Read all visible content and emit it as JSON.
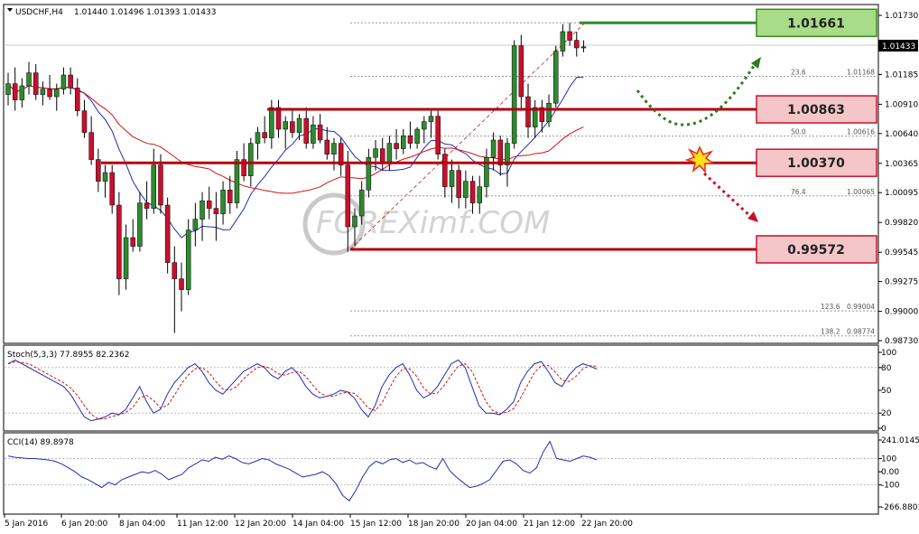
{
  "header": {
    "symbol": "USDCHF,H4",
    "ohlc": "1.01440 1.01496 1.01393 1.01433"
  },
  "watermark": "FOREXimf.COM",
  "colors": {
    "bull": "#2e8b2e",
    "bear": "#c8102e",
    "level_line": "#b50010",
    "target_line": "#2e8b2e",
    "ma_fast": "#1f2fb0",
    "ma_slow": "#d21414",
    "stoch_main": "#1f2fb0",
    "stoch_signal": "#d21414",
    "cci": "#1f2fb0",
    "level_box_fill": "#f4c6c8",
    "target_box_fill": "#a9dc88",
    "arrow_up": "#2e7a1e",
    "arrow_down": "#c8102e"
  },
  "level_boxes": [
    {
      "label": "1.01661",
      "price": 1.01661,
      "kind": "target"
    },
    {
      "label": "1.00863",
      "price": 1.00863,
      "kind": "level"
    },
    {
      "label": "1.00370",
      "price": 1.0037,
      "kind": "level"
    },
    {
      "label": "0.99572",
      "price": 0.99572,
      "kind": "level"
    }
  ],
  "fibonacci": [
    {
      "ratio": "23.6",
      "value": "1.01168",
      "price": 1.01168
    },
    {
      "ratio": "50.0",
      "value": "1.00616",
      "price": 1.00616
    },
    {
      "ratio": "76.4",
      "value": "1.00065",
      "price": 1.00065
    },
    {
      "ratio": "123.6",
      "value": "0.99004",
      "price": 0.99004
    },
    {
      "ratio": "138.2",
      "value": "0.98774",
      "price": 0.98774
    }
  ],
  "price_axis": {
    "ticks": [
      "1.01730",
      "1.01455",
      "1.01185",
      "1.00910",
      "1.00640",
      "1.00365",
      "1.00095",
      "0.99820",
      "0.99545",
      "0.99275",
      "0.99000",
      "0.98730"
    ],
    "current_price": "1.01433",
    "range": [
      0.9868,
      1.0183
    ]
  },
  "time_axis": {
    "labels": [
      "5 Jan 2016",
      "6 Jan 20:00",
      "8 Jan 04:00",
      "11 Jan 12:00",
      "12 Jan 20:00",
      "14 Jan 04:00",
      "15 Jan 12:00",
      "18 Jan 20:00",
      "20 Jan 04:00",
      "21 Jan 12:00",
      "22 Jan 20:00"
    ]
  },
  "stoch": {
    "title": "Stoch(5,3,3) 77.8955 82.2362",
    "ticks": [
      "100",
      "80",
      "50",
      "20",
      "0"
    ]
  },
  "cci": {
    "title": "CCI(14) 89.8978",
    "ticks": [
      "241.0145",
      "100",
      "0.00",
      "-100",
      "-266.8801"
    ]
  },
  "chart_data": {
    "type": "candlestick",
    "symbol": "USDCHF",
    "timeframe": "H4",
    "ylim": [
      0.9873,
      1.0173
    ],
    "candles": [
      {
        "o": 1.01,
        "h": 1.012,
        "l": 1.009,
        "c": 1.011
      },
      {
        "o": 1.011,
        "h": 1.0125,
        "l": 1.0085,
        "c": 1.0095
      },
      {
        "o": 1.0095,
        "h": 1.0115,
        "l": 1.0088,
        "c": 1.0108
      },
      {
        "o": 1.0108,
        "h": 1.013,
        "l": 1.01,
        "c": 1.012
      },
      {
        "o": 1.012,
        "h": 1.0128,
        "l": 1.0095,
        "c": 1.01
      },
      {
        "o": 1.01,
        "h": 1.0112,
        "l": 1.009,
        "c": 1.0105
      },
      {
        "o": 1.0105,
        "h": 1.0118,
        "l": 1.0095,
        "c": 1.0098
      },
      {
        "o": 1.0098,
        "h": 1.011,
        "l": 1.0085,
        "c": 1.0105
      },
      {
        "o": 1.0105,
        "h": 1.0125,
        "l": 1.01,
        "c": 1.0118
      },
      {
        "o": 1.0118,
        "h": 1.0125,
        "l": 1.01,
        "c": 1.0106
      },
      {
        "o": 1.0106,
        "h": 1.0115,
        "l": 1.008,
        "c": 1.0085
      },
      {
        "o": 1.0085,
        "h": 1.0095,
        "l": 1.006,
        "c": 1.0065
      },
      {
        "o": 1.0065,
        "h": 1.008,
        "l": 1.0035,
        "c": 1.004
      },
      {
        "o": 1.004,
        "h": 1.005,
        "l": 1.001,
        "c": 1.002
      },
      {
        "o": 1.002,
        "h": 1.0035,
        "l": 1.0005,
        "c": 1.0028
      },
      {
        "o": 1.0028,
        "h": 1.0035,
        "l": 0.999,
        "c": 0.9998
      },
      {
        "o": 0.9998,
        "h": 1.001,
        "l": 0.9915,
        "c": 0.993
      },
      {
        "o": 0.993,
        "h": 0.998,
        "l": 0.992,
        "c": 0.9968
      },
      {
        "o": 0.9968,
        "h": 0.9985,
        "l": 0.9955,
        "c": 0.996
      },
      {
        "o": 0.996,
        "h": 1.001,
        "l": 0.9955,
        "c": 1.0
      },
      {
        "o": 1.0,
        "h": 1.002,
        "l": 0.9985,
        "c": 0.9995
      },
      {
        "o": 0.9995,
        "h": 1.005,
        "l": 0.999,
        "c": 1.0035
      },
      {
        "o": 1.0035,
        "h": 1.0045,
        "l": 0.999,
        "c": 0.9998
      },
      {
        "o": 0.9998,
        "h": 1.0005,
        "l": 0.9935,
        "c": 0.9945
      },
      {
        "o": 0.9945,
        "h": 0.996,
        "l": 0.988,
        "c": 0.993
      },
      {
        "o": 0.993,
        "h": 0.9945,
        "l": 0.99,
        "c": 0.992
      },
      {
        "o": 0.992,
        "h": 0.9985,
        "l": 0.9915,
        "c": 0.9975
      },
      {
        "o": 0.9975,
        "h": 1.0,
        "l": 0.996,
        "c": 0.9985
      },
      {
        "o": 0.9985,
        "h": 1.001,
        "l": 0.9965,
        "c": 1.0002
      },
      {
        "o": 1.0002,
        "h": 1.0015,
        "l": 0.9985,
        "c": 0.9995
      },
      {
        "o": 0.9995,
        "h": 1.001,
        "l": 0.9965,
        "c": 0.999
      },
      {
        "o": 0.999,
        "h": 1.002,
        "l": 0.998,
        "c": 1.0012
      },
      {
        "o": 1.0012,
        "h": 1.0025,
        "l": 0.999,
        "c": 1.0
      },
      {
        "o": 1.0,
        "h": 1.0048,
        "l": 0.9995,
        "c": 1.004
      },
      {
        "o": 1.004,
        "h": 1.0055,
        "l": 1.002,
        "c": 1.0025
      },
      {
        "o": 1.0025,
        "h": 1.006,
        "l": 1.0015,
        "c": 1.0055
      },
      {
        "o": 1.0055,
        "h": 1.007,
        "l": 1.004,
        "c": 1.0065
      },
      {
        "o": 1.0065,
        "h": 1.008,
        "l": 1.0055,
        "c": 1.006
      },
      {
        "o": 1.006,
        "h": 1.0095,
        "l": 1.005,
        "c": 1.0088
      },
      {
        "o": 1.0088,
        "h": 1.0095,
        "l": 1.006,
        "c": 1.0068
      },
      {
        "o": 1.0068,
        "h": 1.008,
        "l": 1.005,
        "c": 1.0075
      },
      {
        "o": 1.0075,
        "h": 1.0085,
        "l": 1.006,
        "c": 1.0065
      },
      {
        "o": 1.0065,
        "h": 1.0082,
        "l": 1.0058,
        "c": 1.0078
      },
      {
        "o": 1.0078,
        "h": 1.0088,
        "l": 1.005,
        "c": 1.0055
      },
      {
        "o": 1.0055,
        "h": 1.008,
        "l": 1.005,
        "c": 1.0072
      },
      {
        "o": 1.0072,
        "h": 1.0082,
        "l": 1.0055,
        "c": 1.0058
      },
      {
        "o": 1.0058,
        "h": 1.007,
        "l": 1.004,
        "c": 1.0045
      },
      {
        "o": 1.0045,
        "h": 1.006,
        "l": 1.003,
        "c": 1.0055
      },
      {
        "o": 1.0055,
        "h": 1.006,
        "l": 1.0025,
        "c": 1.0035
      },
      {
        "o": 1.0035,
        "h": 1.0048,
        "l": 0.9955,
        "c": 0.9978
      },
      {
        "o": 0.9978,
        "h": 0.9995,
        "l": 0.996,
        "c": 0.9988
      },
      {
        "o": 0.9988,
        "h": 1.002,
        "l": 0.998,
        "c": 1.0012
      },
      {
        "o": 1.0012,
        "h": 1.005,
        "l": 1.0005,
        "c": 1.0042
      },
      {
        "o": 1.0042,
        "h": 1.0058,
        "l": 1.003,
        "c": 1.005
      },
      {
        "o": 1.005,
        "h": 1.006,
        "l": 1.003,
        "c": 1.0038
      },
      {
        "o": 1.0038,
        "h": 1.0062,
        "l": 1.003,
        "c": 1.0055
      },
      {
        "o": 1.0055,
        "h": 1.0068,
        "l": 1.004,
        "c": 1.005
      },
      {
        "o": 1.005,
        "h": 1.0068,
        "l": 1.0045,
        "c": 1.0062
      },
      {
        "o": 1.0062,
        "h": 1.0075,
        "l": 1.005,
        "c": 1.0055
      },
      {
        "o": 1.0055,
        "h": 1.007,
        "l": 1.005,
        "c": 1.0068
      },
      {
        "o": 1.0068,
        "h": 1.008,
        "l": 1.0055,
        "c": 1.0075
      },
      {
        "o": 1.0075,
        "h": 1.0085,
        "l": 1.006,
        "c": 1.008
      },
      {
        "o": 1.008,
        "h": 1.0085,
        "l": 1.004,
        "c": 1.0045
      },
      {
        "o": 1.0045,
        "h": 1.005,
        "l": 1.0005,
        "c": 1.0015
      },
      {
        "o": 1.0015,
        "h": 1.004,
        "l": 1.0,
        "c": 1.003
      },
      {
        "o": 1.003,
        "h": 1.0035,
        "l": 0.9995,
        "c": 1.0005
      },
      {
        "o": 1.0005,
        "h": 1.003,
        "l": 0.9995,
        "c": 1.002
      },
      {
        "o": 1.002,
        "h": 1.0025,
        "l": 0.999,
        "c": 1.0
      },
      {
        "o": 1.0,
        "h": 1.0025,
        "l": 0.999,
        "c": 1.0015
      },
      {
        "o": 1.0015,
        "h": 1.005,
        "l": 1.0005,
        "c": 1.0042
      },
      {
        "o": 1.0042,
        "h": 1.0065,
        "l": 1.003,
        "c": 1.0058
      },
      {
        "o": 1.0058,
        "h": 1.0062,
        "l": 1.0025,
        "c": 1.0035
      },
      {
        "o": 1.0035,
        "h": 1.006,
        "l": 1.0015,
        "c": 1.0055
      },
      {
        "o": 1.0055,
        "h": 1.015,
        "l": 1.005,
        "c": 1.0145
      },
      {
        "o": 1.0145,
        "h": 1.0155,
        "l": 1.0085,
        "c": 1.0098
      },
      {
        "o": 1.0098,
        "h": 1.011,
        "l": 1.006,
        "c": 1.007
      },
      {
        "o": 1.007,
        "h": 1.0095,
        "l": 1.006,
        "c": 1.0088
      },
      {
        "o": 1.0088,
        "h": 1.0095,
        "l": 1.0065,
        "c": 1.0075
      },
      {
        "o": 1.0075,
        "h": 1.01,
        "l": 1.007,
        "c": 1.0092
      },
      {
        "o": 1.0092,
        "h": 1.0145,
        "l": 1.0088,
        "c": 1.014
      },
      {
        "o": 1.014,
        "h": 1.0165,
        "l": 1.0135,
        "c": 1.0158
      },
      {
        "o": 1.0158,
        "h": 1.0166,
        "l": 1.0145,
        "c": 1.015
      },
      {
        "o": 1.015,
        "h": 1.0158,
        "l": 1.0135,
        "c": 1.0143
      },
      {
        "o": 1.0144,
        "h": 1.015,
        "l": 1.0139,
        "c": 1.0143
      }
    ]
  }
}
